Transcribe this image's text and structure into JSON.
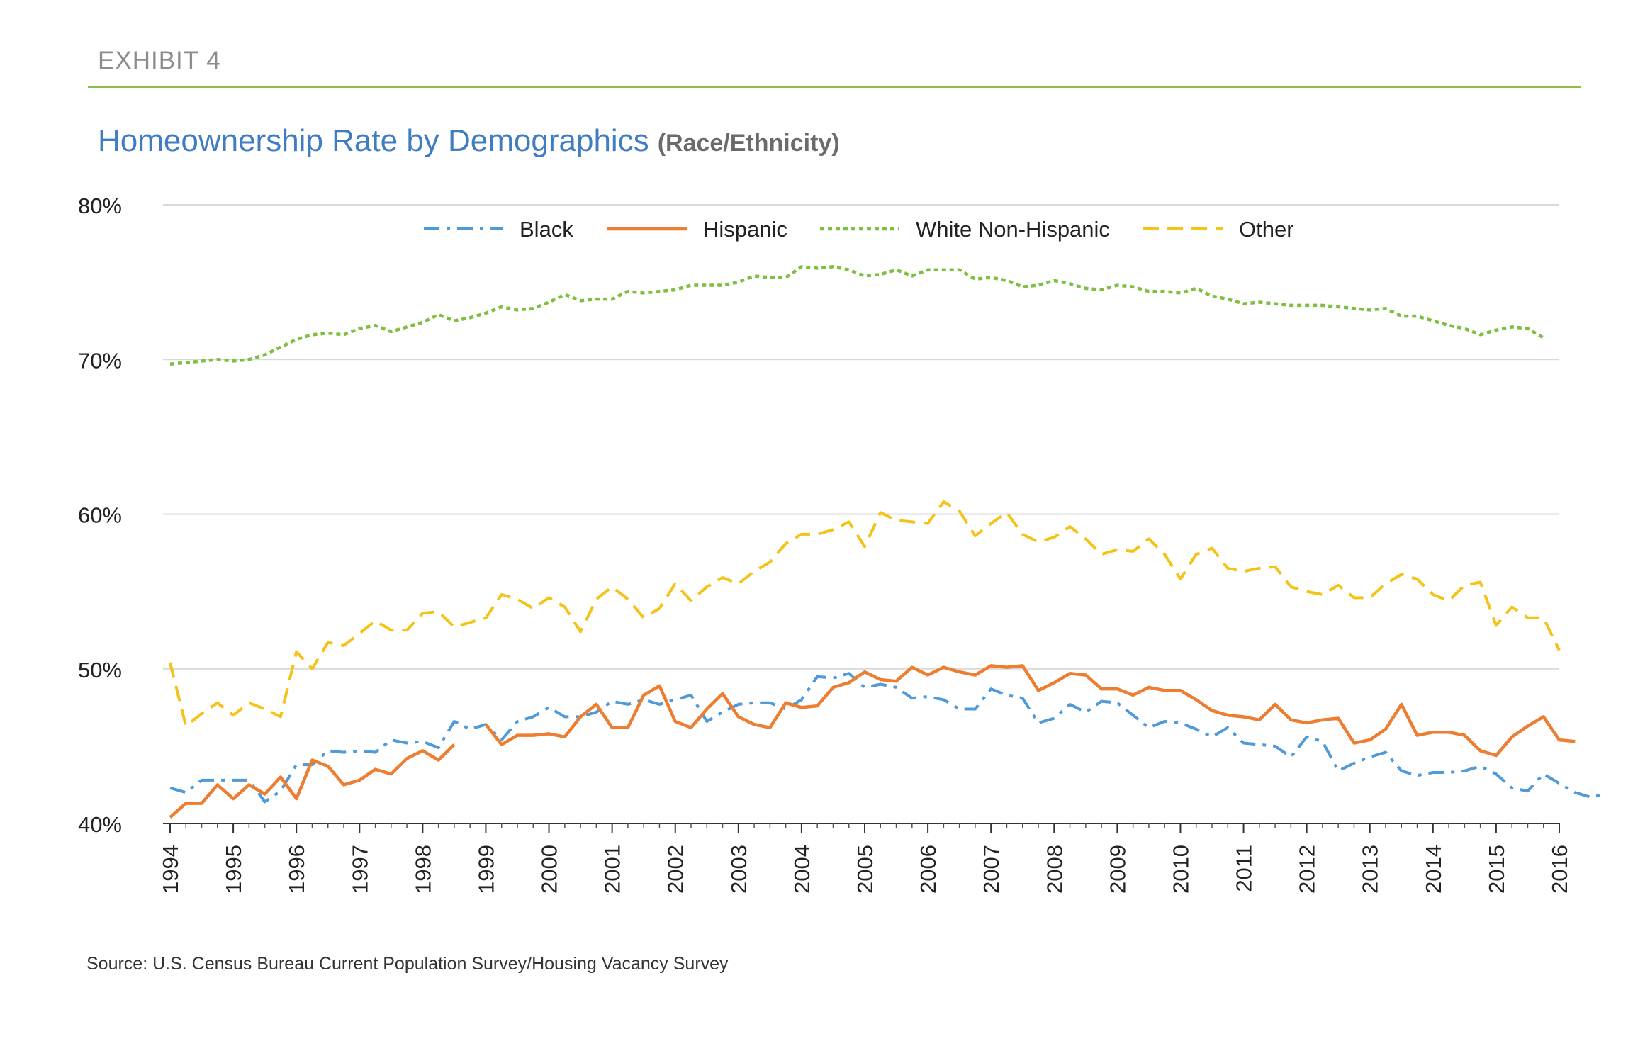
{
  "header": {
    "exhibit": "EXHIBIT 4",
    "title": "Homeownership Rate by Demographics",
    "subtitle": "(Race/Ethnicity)"
  },
  "footer": {
    "source": "Source: U.S. Census Bureau Current Population Survey/Housing Vacancy Survey"
  },
  "colors": {
    "black": "#4f9ad8",
    "hispanic": "#ed7d31",
    "white_non_hispanic": "#7fbf3f",
    "other": "#f5c218",
    "grid": "#d9d9d9",
    "title": "#3f7cc0",
    "rule": "#8dbf4a"
  },
  "chart_data": {
    "type": "line",
    "title": "Homeownership Rate by Demographics",
    "subtitle": "(Race/Ethnicity)",
    "xlabel": "",
    "ylabel": "",
    "ylim": [
      40,
      80
    ],
    "xlim": [
      1994,
      2016
    ],
    "yticks": [
      "40%",
      "50%",
      "60%",
      "70%",
      "80%"
    ],
    "xticks": [
      "1994",
      "1995",
      "1996",
      "1997",
      "1998",
      "1999",
      "2000",
      "2001",
      "2002",
      "2003",
      "2004",
      "2005",
      "2006",
      "2007",
      "2008",
      "2009",
      "2010",
      "2011",
      "2012",
      "2013",
      "2014",
      "2015",
      "2016"
    ],
    "grid": true,
    "legend": "top-center",
    "x_step": 0.25,
    "series": [
      {
        "name": "Black",
        "style": "dash-dot",
        "values": [
          42.3,
          42.0,
          42.8,
          42.8,
          42.8,
          42.8,
          41.4,
          42.1,
          43.8,
          43.8,
          44.7,
          44.6,
          44.7,
          44.6,
          45.4,
          45.2,
          45.3,
          44.9,
          46.6,
          46.1,
          46.4,
          45.4,
          46.6,
          46.9,
          47.5,
          46.9,
          46.9,
          47.2,
          47.9,
          47.7,
          48.0,
          47.7,
          48.0,
          48.3,
          46.6,
          47.2,
          47.7,
          47.8,
          47.8,
          47.4,
          48.0,
          49.5,
          49.4,
          49.7,
          48.8,
          49.0,
          48.8,
          48.1,
          48.2,
          48.0,
          47.4,
          47.4,
          48.7,
          48.3,
          48.1,
          46.5,
          46.8,
          47.7,
          47.2,
          47.9,
          47.8,
          47.0,
          46.2,
          46.6,
          46.5,
          46.1,
          45.6,
          46.2,
          45.2,
          45.1,
          45.0,
          44.3,
          45.6,
          45.3,
          43.4,
          43.9,
          44.3,
          44.6,
          43.4,
          43.1,
          43.3,
          43.3,
          43.4,
          43.7,
          43.2,
          42.3,
          42.1,
          43.2,
          42.6,
          42.0,
          41.7,
          41.9
        ]
      },
      {
        "name": "Hispanic",
        "style": "solid",
        "values": [
          40.4,
          41.3,
          41.3,
          42.5,
          41.6,
          42.5,
          41.9,
          43.0,
          41.6,
          44.1,
          43.7,
          42.5,
          42.8,
          43.5,
          43.2,
          44.2,
          44.7,
          44.1,
          45.1,
          null,
          46.4,
          45.1,
          45.7,
          45.7,
          45.8,
          45.6,
          46.9,
          47.7,
          46.2,
          46.2,
          48.3,
          48.9,
          46.6,
          46.2,
          47.4,
          48.4,
          46.9,
          46.4,
          46.2,
          47.8,
          47.5,
          47.6,
          48.8,
          49.1,
          49.8,
          49.3,
          49.2,
          50.1,
          49.6,
          50.1,
          49.8,
          49.6,
          50.2,
          50.1,
          50.2,
          48.6,
          49.1,
          49.7,
          49.6,
          48.7,
          48.7,
          48.3,
          48.8,
          48.6,
          48.6,
          48.0,
          47.3,
          47.0,
          46.9,
          46.7,
          47.7,
          46.7,
          46.5,
          46.7,
          46.8,
          45.2,
          45.4,
          46.1,
          47.7,
          45.7,
          45.9,
          45.9,
          45.7,
          44.7,
          44.4,
          45.6,
          46.3,
          46.9,
          45.4,
          45.3
        ]
      },
      {
        "name": "White Non-Hispanic",
        "style": "dotted",
        "values": [
          69.7,
          69.8,
          69.9,
          70.0,
          69.9,
          70.0,
          70.3,
          70.8,
          71.3,
          71.6,
          71.7,
          71.6,
          72.0,
          72.2,
          71.8,
          72.1,
          72.4,
          72.9,
          72.5,
          72.7,
          73.0,
          73.4,
          73.2,
          73.3,
          73.7,
          74.2,
          73.8,
          73.9,
          73.9,
          74.4,
          74.3,
          74.4,
          74.5,
          74.8,
          74.8,
          74.8,
          75.0,
          75.4,
          75.3,
          75.3,
          76.0,
          75.9,
          76.0,
          75.8,
          75.4,
          75.5,
          75.8,
          75.4,
          75.8,
          75.8,
          75.8,
          75.2,
          75.3,
          75.1,
          74.7,
          74.8,
          75.1,
          74.9,
          74.6,
          74.5,
          74.8,
          74.7,
          74.4,
          74.4,
          74.3,
          74.6,
          74.1,
          73.9,
          73.6,
          73.7,
          73.6,
          73.5,
          73.5,
          73.5,
          73.4,
          73.3,
          73.2,
          73.3,
          72.8,
          72.8,
          72.5,
          72.2,
          72.0,
          71.6,
          71.9,
          72.1,
          72.0,
          71.4
        ]
      },
      {
        "name": "Other",
        "style": "dashed",
        "values": [
          50.4,
          46.3,
          47.1,
          47.8,
          47.0,
          47.8,
          47.4,
          46.9,
          51.1,
          50.0,
          51.7,
          51.5,
          52.3,
          53.1,
          52.5,
          52.5,
          53.6,
          53.7,
          52.7,
          53.0,
          53.3,
          54.8,
          54.5,
          53.9,
          54.6,
          54.0,
          52.4,
          54.5,
          55.3,
          54.5,
          53.3,
          53.9,
          55.5,
          54.4,
          55.3,
          55.9,
          55.5,
          56.3,
          56.9,
          58.1,
          58.7,
          58.7,
          59.0,
          59.5,
          57.9,
          60.1,
          59.6,
          59.5,
          59.4,
          60.8,
          60.2,
          58.6,
          59.4,
          60.1,
          58.7,
          58.2,
          58.5,
          59.2,
          58.4,
          57.4,
          57.7,
          57.6,
          58.4,
          57.4,
          55.8,
          57.4,
          57.8,
          56.5,
          56.3,
          56.5,
          56.6,
          55.3,
          55.0,
          54.8,
          55.4,
          54.6,
          54.6,
          55.5,
          56.1,
          55.8,
          54.8,
          54.4,
          55.4,
          55.6,
          52.8,
          54.0,
          53.3,
          53.3,
          51.2
        ]
      }
    ]
  }
}
